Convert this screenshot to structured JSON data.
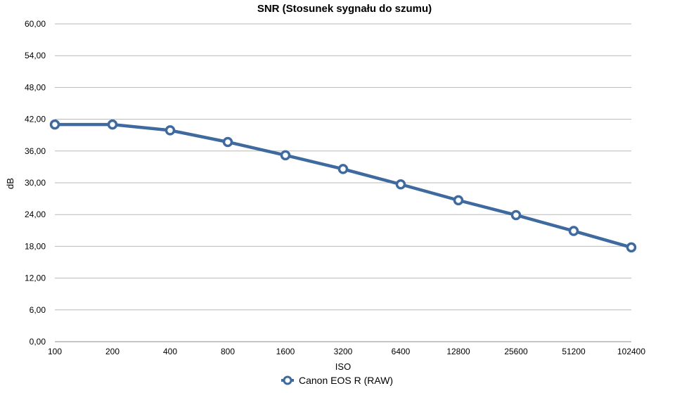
{
  "chart_data": {
    "type": "line",
    "title": "SNR (Stosunek sygnału do szumu)",
    "xlabel": "ISO",
    "ylabel": "dB",
    "categories": [
      "100",
      "200",
      "400",
      "800",
      "1600",
      "3200",
      "6400",
      "12800",
      "25600",
      "51200",
      "102400"
    ],
    "yticks": [
      "0,00",
      "6,00",
      "12,00",
      "18,00",
      "24,00",
      "30,00",
      "36,00",
      "42,00",
      "48,00",
      "54,00",
      "60,00"
    ],
    "ylim": [
      0,
      60
    ],
    "grid": true,
    "legend_position": "bottom",
    "series": [
      {
        "name": "Canon EOS R (RAW)",
        "color": "#3e6aa0",
        "values": [
          41.0,
          41.0,
          39.9,
          37.7,
          35.2,
          32.6,
          29.7,
          26.7,
          23.9,
          20.9,
          17.8
        ]
      }
    ]
  }
}
